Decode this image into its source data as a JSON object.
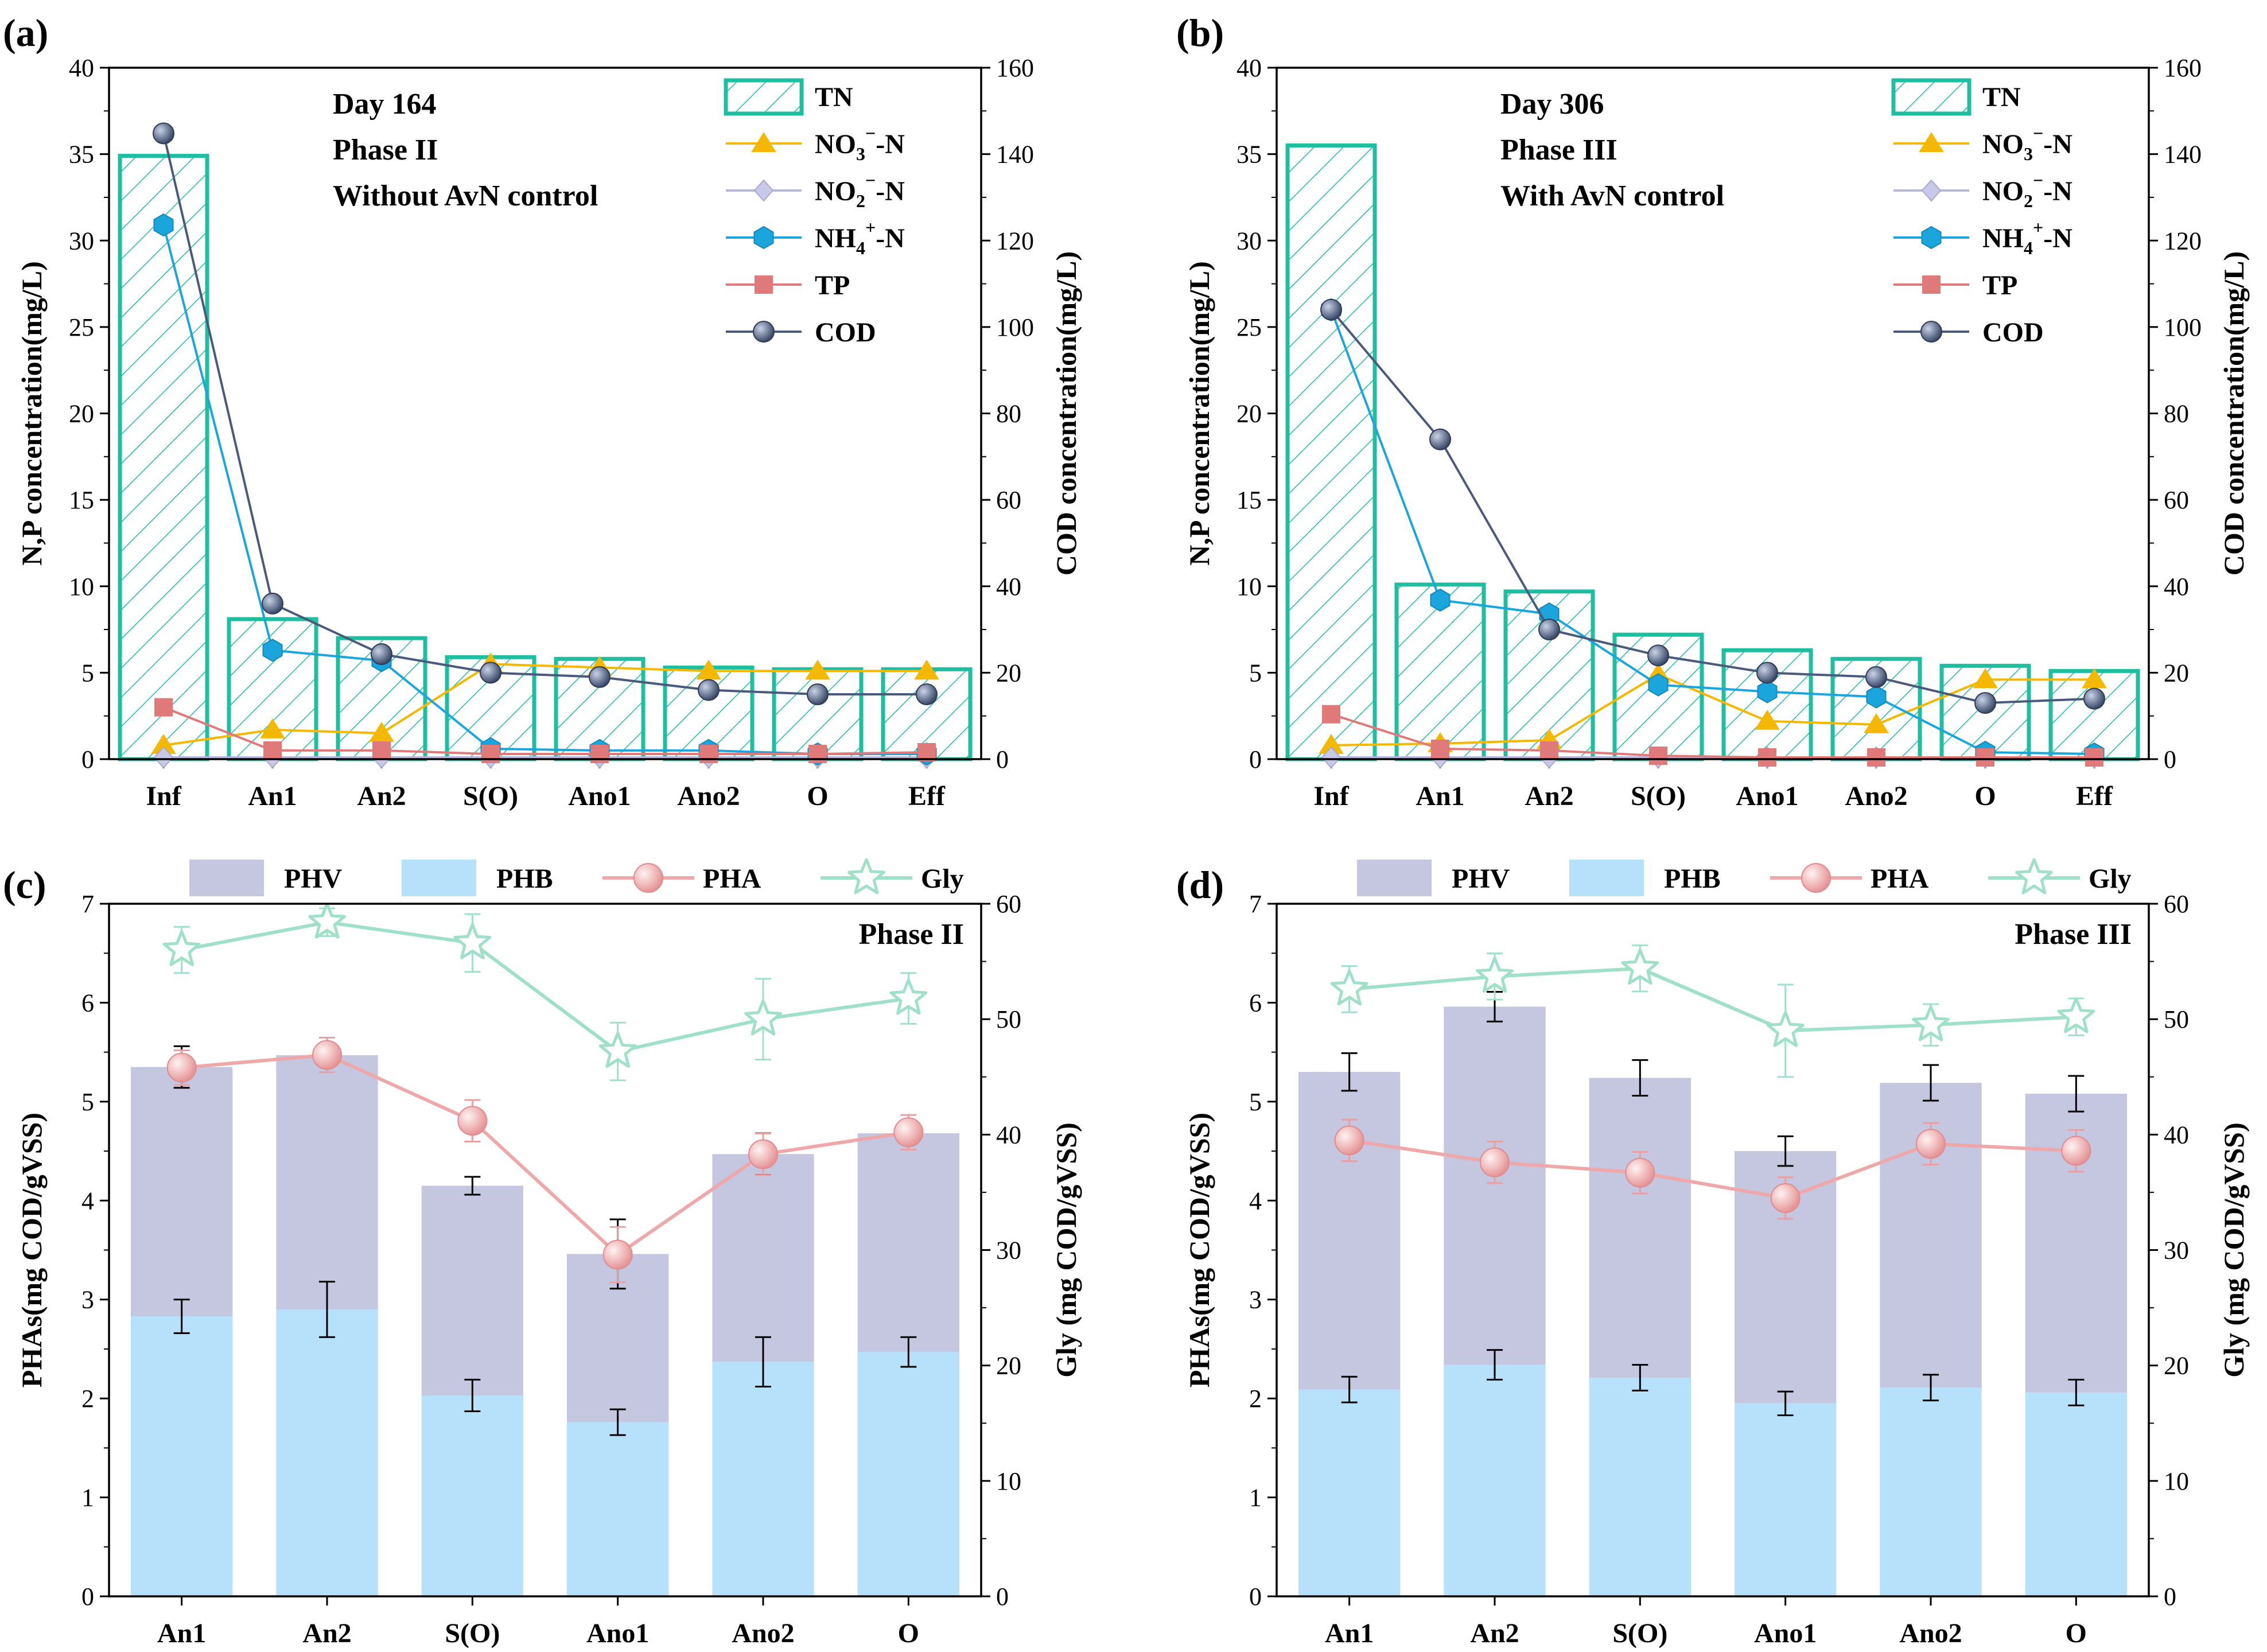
{
  "colors": {
    "tn": "#1dbfa0",
    "no3": "#f5b800",
    "no2": "#c8c8e8",
    "nh4": "#1aa6dd",
    "tp": "#e07a7a",
    "cod": "#4a5a7c",
    "phv": "#c5c6e0",
    "phb": "#b7e0fb",
    "pha": "#eea8aa",
    "gly": "#9fe0c8"
  },
  "chart_data": [
    {
      "panel": "(a)",
      "type": "bar+line",
      "categories": [
        "Inf",
        "An1",
        "An2",
        "S(O)",
        "Ano1",
        "Ano2",
        "O",
        "Eff"
      ],
      "ylabel": "N,P concentration(mg/L)",
      "y2label": "COD concentration(mg/L)",
      "ylim": [
        0,
        40
      ],
      "y2lim": [
        0,
        160
      ],
      "yticks": [
        "0",
        "5",
        "10",
        "15",
        "20",
        "25",
        "30",
        "35",
        "40"
      ],
      "y2ticks": [
        "0",
        "20",
        "40",
        "60",
        "80",
        "100",
        "120",
        "140",
        "160"
      ],
      "annotations": [
        "Day 164",
        "Phase II",
        "Without AvN control"
      ],
      "legend": [
        {
          "label": "TN"
        },
        {
          "label": "NO",
          "sub": "3",
          "sup": "−",
          "suffix": "-N"
        },
        {
          "label": "NO",
          "sub": "2",
          "sup": "−",
          "suffix": "-N"
        },
        {
          "label": "NH",
          "sub": "4",
          "sup": "+",
          "suffix": "-N"
        },
        {
          "label": "TP"
        },
        {
          "label": "COD"
        }
      ],
      "series": {
        "TN": [
          34.9,
          8.1,
          7.0,
          5.9,
          5.8,
          5.3,
          5.2,
          5.2
        ],
        "NO3": [
          0.8,
          1.7,
          1.5,
          5.5,
          5.3,
          5.1,
          5.1,
          5.1
        ],
        "NO2": [
          0.1,
          0.1,
          0.1,
          0.1,
          0.1,
          0.1,
          0.1,
          0.1
        ],
        "NH4": [
          30.9,
          6.3,
          5.7,
          0.6,
          0.5,
          0.5,
          0.3,
          0.3
        ],
        "TP": [
          3.0,
          0.5,
          0.5,
          0.3,
          0.3,
          0.3,
          0.3,
          0.4
        ],
        "COD": [
          144.8,
          36.0,
          24.3,
          20.0,
          19.0,
          16.0,
          15.0,
          15.0
        ]
      }
    },
    {
      "panel": "(b)",
      "type": "bar+line",
      "categories": [
        "Inf",
        "An1",
        "An2",
        "S(O)",
        "Ano1",
        "Ano2",
        "O",
        "Eff"
      ],
      "ylabel": "N,P concentration(mg/L)",
      "y2label": "COD concentration(mg/L)",
      "ylim": [
        0,
        40
      ],
      "y2lim": [
        0,
        160
      ],
      "yticks": [
        "0",
        "5",
        "10",
        "15",
        "20",
        "25",
        "30",
        "35",
        "40"
      ],
      "y2ticks": [
        "0",
        "20",
        "40",
        "60",
        "80",
        "100",
        "120",
        "140",
        "160"
      ],
      "annotations": [
        "Day 306",
        "Phase III",
        "With AvN control"
      ],
      "legend": [
        {
          "label": "TN"
        },
        {
          "label": "NO",
          "sub": "3",
          "sup": "−",
          "suffix": "-N"
        },
        {
          "label": "NO",
          "sub": "2",
          "sup": "−",
          "suffix": "-N"
        },
        {
          "label": "NH",
          "sub": "4",
          "sup": "+",
          "suffix": "-N"
        },
        {
          "label": "TP"
        },
        {
          "label": "COD"
        }
      ],
      "series": {
        "TN": [
          35.5,
          10.1,
          9.7,
          7.2,
          6.3,
          5.8,
          5.4,
          5.1
        ],
        "NO3": [
          0.8,
          0.9,
          1.1,
          4.9,
          2.2,
          2.0,
          4.6,
          4.6
        ],
        "NO2": [
          0.1,
          0.1,
          0.1,
          0.1,
          0.1,
          0.1,
          0.1,
          0.1
        ],
        "NH4": [
          26.0,
          9.2,
          8.4,
          4.3,
          3.9,
          3.6,
          0.4,
          0.3
        ],
        "TP": [
          2.6,
          0.6,
          0.5,
          0.2,
          0.1,
          0.1,
          0.1,
          0.1
        ],
        "COD": [
          104.0,
          74.0,
          30.0,
          24.0,
          20.0,
          19.0,
          13.0,
          14.0
        ]
      }
    },
    {
      "panel": "(c)",
      "type": "stacked-bar+line",
      "categories": [
        "An1",
        "An2",
        "S(O)",
        "Ano1",
        "Ano2",
        "O"
      ],
      "ylabel": "PHAs(mg COD/gVSS)",
      "y2label": "Gly (mg COD/gVSS)",
      "ylim": [
        0,
        7
      ],
      "y2lim": [
        0,
        60
      ],
      "yticks": [
        "0",
        "1",
        "2",
        "3",
        "4",
        "5",
        "6",
        "7"
      ],
      "y2ticks": [
        "0",
        "10",
        "20",
        "30",
        "40",
        "50",
        "60"
      ],
      "annotations": [
        "Phase II"
      ],
      "legend": [
        {
          "label": "PHV"
        },
        {
          "label": "PHB"
        },
        {
          "label": "PHA"
        },
        {
          "label": "Gly"
        }
      ],
      "series": {
        "PHB": [
          2.83,
          2.9,
          2.03,
          1.76,
          2.37,
          2.47
        ],
        "PHB_err": [
          0.17,
          0.28,
          0.16,
          0.13,
          0.25,
          0.15
        ],
        "PHV_top": [
          5.35,
          5.47,
          4.15,
          3.46,
          4.47,
          4.68
        ],
        "PHV_top_err": [
          0.21,
          0.05,
          0.09,
          0.35,
          0.21,
          0.04
        ],
        "PHA": [
          45.8,
          46.9,
          41.2,
          29.6,
          38.3,
          40.2
        ],
        "PHA_err": [
          1.5,
          1.5,
          1.8,
          2.4,
          1.8,
          1.5
        ],
        "Gly": [
          56.0,
          58.4,
          56.6,
          47.2,
          50.0,
          51.8
        ],
        "Gly_err": [
          2.0,
          1.2,
          2.5,
          2.5,
          3.5,
          2.2
        ]
      }
    },
    {
      "panel": "(d)",
      "type": "stacked-bar+line",
      "categories": [
        "An1",
        "An2",
        "S(O)",
        "Ano1",
        "Ano2",
        "O"
      ],
      "ylabel": "PHAs(mg COD/gVSS)",
      "y2label": "Gly (mg COD/gVSS)",
      "ylim": [
        0,
        7
      ],
      "y2lim": [
        0,
        60
      ],
      "yticks": [
        "0",
        "1",
        "2",
        "3",
        "4",
        "5",
        "6",
        "7"
      ],
      "y2ticks": [
        "0",
        "10",
        "20",
        "30",
        "40",
        "50",
        "60"
      ],
      "annotations": [
        "Phase III"
      ],
      "legend": [
        {
          "label": "PHV"
        },
        {
          "label": "PHB"
        },
        {
          "label": "PHA"
        },
        {
          "label": "Gly"
        }
      ],
      "series": {
        "PHB": [
          2.09,
          2.34,
          2.21,
          1.95,
          2.11,
          2.06
        ],
        "PHB_err": [
          0.13,
          0.15,
          0.13,
          0.12,
          0.13,
          0.13
        ],
        "PHV_top": [
          5.3,
          5.96,
          5.24,
          4.5,
          5.19,
          5.08
        ],
        "PHV_top_err": [
          0.19,
          0.15,
          0.18,
          0.15,
          0.18,
          0.18
        ],
        "PHA": [
          39.5,
          37.6,
          36.7,
          34.5,
          39.2,
          38.6
        ],
        "PHA_err": [
          1.8,
          1.8,
          1.8,
          1.8,
          1.8,
          1.8
        ],
        "Gly": [
          52.6,
          53.7,
          54.4,
          49.0,
          49.5,
          50.2
        ],
        "Gly_err": [
          2.0,
          2.0,
          2.0,
          4.0,
          1.8,
          1.6
        ]
      }
    }
  ]
}
